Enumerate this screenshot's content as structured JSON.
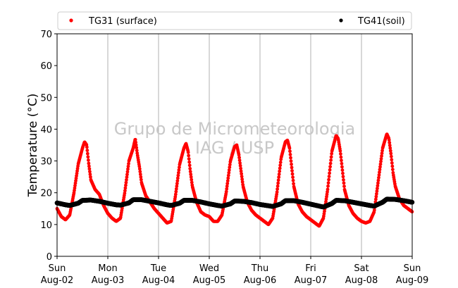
{
  "chart_data": {
    "type": "scatter",
    "ylabel": "Temperature (°C)",
    "ylim": [
      0,
      70
    ],
    "yticks": [
      0,
      10,
      20,
      30,
      40,
      50,
      60,
      70
    ],
    "xlim": [
      "2015-08-02 00:00",
      "2015-08-09 00:00"
    ],
    "xticks": [
      {
        "day": "Sun",
        "date": "Aug-02"
      },
      {
        "day": "Mon",
        "date": "Aug-03"
      },
      {
        "day": "Tue",
        "date": "Aug-04"
      },
      {
        "day": "Wed",
        "date": "Aug-05"
      },
      {
        "day": "Thu",
        "date": "Aug-06"
      },
      {
        "day": "Fri",
        "date": "Aug-07"
      },
      {
        "day": "Sat",
        "date": "Aug-08"
      },
      {
        "day": "Sun",
        "date": "Aug-09"
      }
    ],
    "grid": "vertical",
    "legend_position": "top",
    "watermark": [
      "Grupo de Micrometeorologia",
      "IAG / USP"
    ],
    "colors": {
      "surface": "#ff0000",
      "soil": "#000000",
      "grid": "#b0b0b0",
      "watermark": "#c8c8c8"
    },
    "series": [
      {
        "name": "TG31 (surface)",
        "color": "#ff0000",
        "points": [
          [
            "Aug-02 00:00",
            15.0
          ],
          [
            "Aug-02 02:00",
            12.5
          ],
          [
            "Aug-02 04:00",
            11.5
          ],
          [
            "Aug-02 06:00",
            13.0
          ],
          [
            "Aug-02 08:00",
            20.0
          ],
          [
            "Aug-02 10:00",
            29.0
          ],
          [
            "Aug-02 12:00",
            34.0
          ],
          [
            "Aug-02 13:00",
            36.0
          ],
          [
            "Aug-02 14:00",
            35.0
          ],
          [
            "Aug-02 15:00",
            29.0
          ],
          [
            "Aug-02 16:00",
            24.0
          ],
          [
            "Aug-02 18:00",
            21.0
          ],
          [
            "Aug-02 20:00",
            19.5
          ],
          [
            "Aug-02 22:00",
            16.0
          ],
          [
            "Aug-03 00:00",
            13.5
          ],
          [
            "Aug-03 02:00",
            12.0
          ],
          [
            "Aug-03 04:00",
            11.0
          ],
          [
            "Aug-03 06:00",
            12.0
          ],
          [
            "Aug-03 08:00",
            20.0
          ],
          [
            "Aug-03 10:00",
            30.0
          ],
          [
            "Aug-03 12:00",
            34.0
          ],
          [
            "Aug-03 13:00",
            37.0
          ],
          [
            "Aug-03 14:00",
            32.0
          ],
          [
            "Aug-03 15:00",
            28.0
          ],
          [
            "Aug-03 16:00",
            23.0
          ],
          [
            "Aug-03 18:00",
            19.0
          ],
          [
            "Aug-03 20:00",
            17.0
          ],
          [
            "Aug-03 22:00",
            15.0
          ],
          [
            "Aug-04 00:00",
            13.5
          ],
          [
            "Aug-04 02:00",
            12.0
          ],
          [
            "Aug-04 04:00",
            10.5
          ],
          [
            "Aug-04 06:00",
            11.0
          ],
          [
            "Aug-04 08:00",
            19.0
          ],
          [
            "Aug-04 10:00",
            29.0
          ],
          [
            "Aug-04 12:00",
            34.0
          ],
          [
            "Aug-04 13:00",
            35.5
          ],
          [
            "Aug-04 14:00",
            33.0
          ],
          [
            "Aug-04 15:00",
            27.0
          ],
          [
            "Aug-04 16:00",
            22.0
          ],
          [
            "Aug-04 18:00",
            17.0
          ],
          [
            "Aug-04 20:00",
            14.0
          ],
          [
            "Aug-04 22:00",
            13.0
          ],
          [
            "Aug-05 00:00",
            12.5
          ],
          [
            "Aug-05 02:00",
            11.0
          ],
          [
            "Aug-05 04:00",
            11.0
          ],
          [
            "Aug-05 06:00",
            13.0
          ],
          [
            "Aug-05 08:00",
            20.0
          ],
          [
            "Aug-05 10:00",
            30.0
          ],
          [
            "Aug-05 12:00",
            34.5
          ],
          [
            "Aug-05 13:00",
            35.0
          ],
          [
            "Aug-05 14:00",
            32.0
          ],
          [
            "Aug-05 15:00",
            27.0
          ],
          [
            "Aug-05 16:00",
            22.0
          ],
          [
            "Aug-05 18:00",
            17.0
          ],
          [
            "Aug-05 20:00",
            14.5
          ],
          [
            "Aug-05 22:00",
            13.0
          ],
          [
            "Aug-06 00:00",
            12.0
          ],
          [
            "Aug-06 02:00",
            11.0
          ],
          [
            "Aug-06 04:00",
            10.0
          ],
          [
            "Aug-06 06:00",
            12.0
          ],
          [
            "Aug-06 08:00",
            20.0
          ],
          [
            "Aug-06 10:00",
            31.0
          ],
          [
            "Aug-06 12:00",
            36.0
          ],
          [
            "Aug-06 13:00",
            36.5
          ],
          [
            "Aug-06 14:00",
            34.0
          ],
          [
            "Aug-06 15:00",
            28.0
          ],
          [
            "Aug-06 16:00",
            22.0
          ],
          [
            "Aug-06 18:00",
            16.5
          ],
          [
            "Aug-06 20:00",
            14.0
          ],
          [
            "Aug-06 22:00",
            12.5
          ],
          [
            "Aug-07 00:00",
            11.5
          ],
          [
            "Aug-07 02:00",
            10.5
          ],
          [
            "Aug-07 04:00",
            9.5
          ],
          [
            "Aug-07 06:00",
            12.0
          ],
          [
            "Aug-07 08:00",
            21.0
          ],
          [
            "Aug-07 10:00",
            33.0
          ],
          [
            "Aug-07 12:00",
            38.0
          ],
          [
            "Aug-07 13:00",
            37.0
          ],
          [
            "Aug-07 14:00",
            33.0
          ],
          [
            "Aug-07 15:00",
            27.0
          ],
          [
            "Aug-07 16:00",
            21.0
          ],
          [
            "Aug-07 18:00",
            16.0
          ],
          [
            "Aug-07 20:00",
            13.5
          ],
          [
            "Aug-07 22:00",
            12.0
          ],
          [
            "Aug-08 00:00",
            11.0
          ],
          [
            "Aug-08 02:00",
            10.5
          ],
          [
            "Aug-08 04:00",
            11.0
          ],
          [
            "Aug-08 06:00",
            14.0
          ],
          [
            "Aug-08 08:00",
            24.0
          ],
          [
            "Aug-08 10:00",
            34.0
          ],
          [
            "Aug-08 12:00",
            38.5
          ],
          [
            "Aug-08 13:00",
            37.0
          ],
          [
            "Aug-08 14:00",
            32.0
          ],
          [
            "Aug-08 15:00",
            26.0
          ],
          [
            "Aug-08 16:00",
            22.0
          ],
          [
            "Aug-08 18:00",
            18.0
          ],
          [
            "Aug-08 20:00",
            16.0
          ],
          [
            "Aug-08 22:00",
            15.0
          ],
          [
            "Aug-09 00:00",
            14.0
          ]
        ]
      },
      {
        "name": "TG41(soil)",
        "color": "#000000",
        "points": [
          [
            "Aug-02 00:00",
            16.8
          ],
          [
            "Aug-02 04:00",
            16.2
          ],
          [
            "Aug-02 06:00",
            16.0
          ],
          [
            "Aug-02 10:00",
            16.7
          ],
          [
            "Aug-02 12:00",
            17.6
          ],
          [
            "Aug-02 16:00",
            17.7
          ],
          [
            "Aug-02 20:00",
            17.3
          ],
          [
            "Aug-03 00:00",
            16.7
          ],
          [
            "Aug-03 04:00",
            16.2
          ],
          [
            "Aug-03 06:00",
            16.1
          ],
          [
            "Aug-03 10:00",
            16.8
          ],
          [
            "Aug-03 12:00",
            17.8
          ],
          [
            "Aug-03 16:00",
            17.8
          ],
          [
            "Aug-03 20:00",
            17.3
          ],
          [
            "Aug-04 00:00",
            16.8
          ],
          [
            "Aug-04 04:00",
            16.2
          ],
          [
            "Aug-04 06:00",
            16.0
          ],
          [
            "Aug-04 10:00",
            16.7
          ],
          [
            "Aug-04 12:00",
            17.6
          ],
          [
            "Aug-04 16:00",
            17.6
          ],
          [
            "Aug-04 20:00",
            17.1
          ],
          [
            "Aug-05 00:00",
            16.5
          ],
          [
            "Aug-05 04:00",
            16.0
          ],
          [
            "Aug-05 06:00",
            15.8
          ],
          [
            "Aug-05 10:00",
            16.5
          ],
          [
            "Aug-05 12:00",
            17.4
          ],
          [
            "Aug-05 16:00",
            17.3
          ],
          [
            "Aug-05 20:00",
            16.9
          ],
          [
            "Aug-06 00:00",
            16.3
          ],
          [
            "Aug-06 04:00",
            15.9
          ],
          [
            "Aug-06 06:00",
            15.7
          ],
          [
            "Aug-06 10:00",
            16.5
          ],
          [
            "Aug-06 12:00",
            17.5
          ],
          [
            "Aug-06 16:00",
            17.5
          ],
          [
            "Aug-06 20:00",
            17.0
          ],
          [
            "Aug-07 00:00",
            16.4
          ],
          [
            "Aug-07 04:00",
            15.8
          ],
          [
            "Aug-07 06:00",
            15.5
          ],
          [
            "Aug-07 10:00",
            16.6
          ],
          [
            "Aug-07 12:00",
            17.6
          ],
          [
            "Aug-07 16:00",
            17.5
          ],
          [
            "Aug-07 20:00",
            17.0
          ],
          [
            "Aug-08 00:00",
            16.5
          ],
          [
            "Aug-08 04:00",
            16.0
          ],
          [
            "Aug-08 06:00",
            15.8
          ],
          [
            "Aug-08 10:00",
            17.0
          ],
          [
            "Aug-08 12:00",
            18.0
          ],
          [
            "Aug-08 16:00",
            17.9
          ],
          [
            "Aug-08 20:00",
            17.5
          ],
          [
            "Aug-09 00:00",
            17.0
          ]
        ]
      }
    ]
  }
}
